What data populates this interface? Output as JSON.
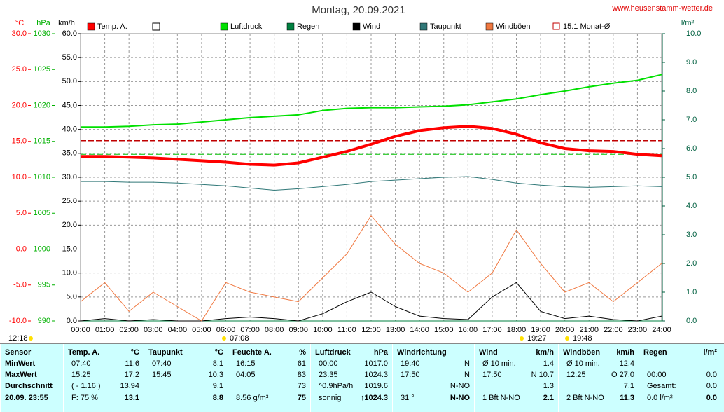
{
  "chart_data": {
    "type": "line",
    "title": "Montag, 20.09.2021",
    "site": "www.heusenstamm-wetter.de",
    "categories": [
      "00:00",
      "01:00",
      "02:00",
      "03:00",
      "04:00",
      "05:00",
      "06:00",
      "07:00",
      "08:00",
      "09:00",
      "10:00",
      "11:00",
      "12:00",
      "13:00",
      "14:00",
      "15:00",
      "16:00",
      "17:00",
      "18:00",
      "19:00",
      "20:00",
      "21:00",
      "22:00",
      "23:00",
      "24:00"
    ],
    "axes": [
      {
        "unit": "°C",
        "color": "#ff0000",
        "lim": [
          -10,
          30
        ],
        "ticks": [
          {
            "value": -10,
            "label": "-10.0"
          },
          {
            "value": -5,
            "label": "-5.0"
          },
          {
            "value": 0,
            "label": "0.0"
          },
          {
            "value": 5,
            "label": "5.0"
          },
          {
            "value": 10,
            "label": "10.0"
          },
          {
            "value": 15,
            "label": "15.0"
          },
          {
            "value": 20,
            "label": "20.0"
          },
          {
            "value": 25,
            "label": "25.0"
          },
          {
            "value": 30,
            "label": "30.0"
          }
        ]
      },
      {
        "unit": "hPa",
        "color": "#00b000",
        "lim": [
          990,
          1030
        ],
        "ticks": [
          990,
          995,
          1000,
          1005,
          1010,
          1015,
          1020,
          1025,
          1030
        ]
      },
      {
        "unit": "km/h",
        "color": "#000000",
        "lim": [
          0,
          60
        ],
        "grid": true,
        "ticks": [
          {
            "value": 0,
            "label": "0.0"
          },
          {
            "value": 5,
            "label": "5.0"
          },
          {
            "value": 10,
            "label": "10.0"
          },
          {
            "value": 15,
            "label": "15.0"
          },
          {
            "value": 20,
            "label": "20.0"
          },
          {
            "value": 25,
            "label": "25.0"
          },
          {
            "value": 30,
            "label": "30.0"
          },
          {
            "value": 35,
            "label": "35.0"
          },
          {
            "value": 40,
            "label": "40.0"
          },
          {
            "value": 45,
            "label": "45.0"
          },
          {
            "value": 50,
            "label": "50.0"
          },
          {
            "value": 55,
            "label": "55.0"
          },
          {
            "value": 60,
            "label": "60.0"
          }
        ]
      },
      {
        "unit": "l/m²",
        "color": "#006040",
        "lim": [
          0,
          10
        ],
        "ticks": [
          {
            "value": 0,
            "label": "0.0"
          },
          {
            "value": 1,
            "label": "1.0"
          },
          {
            "value": 2,
            "label": "2.0"
          },
          {
            "value": 3,
            "label": "3.0"
          },
          {
            "value": 4,
            "label": "4.0"
          },
          {
            "value": 5,
            "label": "5.0"
          },
          {
            "value": 6,
            "label": "6.0"
          },
          {
            "value": 7,
            "label": "7.0"
          },
          {
            "value": 8,
            "label": "8.0"
          },
          {
            "value": 9,
            "label": "9.0"
          },
          {
            "value": 10,
            "label": "10.0"
          }
        ]
      }
    ],
    "series": [
      {
        "name": "Temp. A.",
        "color": "#ff0000",
        "axis": 0,
        "width": 4,
        "values": [
          12.9,
          12.9,
          12.8,
          12.7,
          12.5,
          12.3,
          12.1,
          11.8,
          11.7,
          12.0,
          12.8,
          13.6,
          14.6,
          15.7,
          16.5,
          16.9,
          17.1,
          16.8,
          16.0,
          14.8,
          14.0,
          13.7,
          13.6,
          13.2,
          13.0
        ]
      },
      {
        "name": "Luftdruck",
        "color": "#00e000",
        "axis": 1,
        "width": 2,
        "values": [
          1017.0,
          1017.0,
          1017.1,
          1017.3,
          1017.4,
          1017.7,
          1018.0,
          1018.3,
          1018.5,
          1018.7,
          1019.3,
          1019.6,
          1019.7,
          1019.7,
          1019.8,
          1019.9,
          1020.1,
          1020.5,
          1020.9,
          1021.5,
          1022.0,
          1022.6,
          1023.1,
          1023.5,
          1024.3
        ]
      },
      {
        "name": "Regen",
        "color": "#008040",
        "axis": 3,
        "width": 1,
        "values": [
          0,
          0,
          0,
          0,
          0,
          0,
          0,
          0,
          0,
          0,
          0,
          0,
          0,
          0,
          0,
          0,
          0,
          0,
          0,
          0,
          0,
          0,
          0,
          0,
          0
        ]
      },
      {
        "name": "Wind",
        "color": "#000000",
        "axis": 2,
        "width": 1,
        "values": [
          0,
          0.5,
          0,
          0.3,
          0,
          0,
          0.5,
          0.8,
          0.5,
          0,
          1.5,
          4,
          6,
          3,
          1,
          0.5,
          0.3,
          5,
          8,
          2,
          0.5,
          1,
          0.3,
          0,
          1
        ]
      },
      {
        "name": "Taupunkt",
        "color": "#307878",
        "axis": 0,
        "width": 1,
        "values": [
          9.4,
          9.4,
          9.3,
          9.3,
          9.2,
          9.0,
          8.8,
          8.5,
          8.2,
          8.4,
          8.7,
          9.0,
          9.4,
          9.6,
          9.8,
          10.0,
          10.1,
          9.7,
          9.2,
          8.9,
          8.7,
          8.6,
          8.7,
          8.8,
          8.7
        ]
      },
      {
        "name": "Windböen",
        "color": "#f07840",
        "axis": 2,
        "width": 1,
        "values": [
          4,
          8,
          2,
          6,
          3,
          0,
          8,
          6,
          5,
          4,
          9,
          14,
          22,
          16,
          12,
          10,
          6,
          10,
          19,
          12,
          6,
          8,
          4,
          8,
          12
        ]
      }
    ],
    "monthly": {
      "name": "15.1 Monat-Ø",
      "value": 15.1,
      "axis": 0,
      "color": "#c00000"
    },
    "reference_lines": [
      {
        "axis": 1,
        "value": 1013.2,
        "color": "#00c000"
      }
    ],
    "sun_times": [
      "12:18",
      "07:08",
      "19:27",
      "19:48"
    ]
  },
  "table": {
    "columns": [
      {
        "head": {
          "l": "Sensor"
        },
        "rows": [
          {
            "l": "MinWert"
          },
          {
            "l": "MaxWert"
          },
          {
            "l": "Durchschnitt"
          },
          {
            "l": "20.09. 23:55"
          }
        ]
      },
      {
        "head": {
          "l": "Temp. A.",
          "r": "°C"
        },
        "rows": [
          {
            "l": "07:40",
            "r": "11.6"
          },
          {
            "l": "15:25",
            "r": "17.2"
          },
          {
            "l": "( - 1.16 )",
            "r": "13.94"
          },
          {
            "l": "F: 75 %",
            "r": "13.1"
          }
        ]
      },
      {
        "head": {
          "l": "Taupunkt",
          "r": "°C"
        },
        "rows": [
          {
            "l": "07:40",
            "r": "8.1"
          },
          {
            "l": "15:45",
            "r": "10.3"
          },
          {
            "r": "9.1"
          },
          {
            "r": "8.8"
          }
        ]
      },
      {
        "head": {
          "l": "Feuchte A.",
          "r": "%"
        },
        "rows": [
          {
            "l": "16:15",
            "r": "61"
          },
          {
            "l": "04:05",
            "r": "83"
          },
          {
            "r": "73"
          },
          {
            "l": "8.56 g/m³",
            "r": "75"
          }
        ]
      },
      {
        "head": {
          "l": "Luftdruck",
          "r": "hPa"
        },
        "rows": [
          {
            "l": "00:00",
            "r": "1017.0"
          },
          {
            "l": "23:35",
            "r": "1024.3"
          },
          {
            "l": "^0.9hPa/h",
            "r": "1019.6"
          },
          {
            "l": "sonnig",
            "r": "↑1024.3"
          }
        ]
      },
      {
        "head": {
          "l": "Windrichtung"
        },
        "rows": [
          {
            "l": "19:40",
            "r": "N"
          },
          {
            "l": "17:50",
            "r": "N"
          },
          {
            "r": "N-NO"
          },
          {
            "l": "31 °",
            "r": "N-NO"
          }
        ]
      },
      {
        "head": {
          "l": "Wind",
          "r": "km/h"
        },
        "rows": [
          {
            "l": "Ø 10 min.",
            "r": "1.4"
          },
          {
            "l": "17:50",
            "r": "N 10.7"
          },
          {
            "r": "1.3"
          },
          {
            "l": "1 Bft N-NO",
            "r": "2.1"
          }
        ]
      },
      {
        "head": {
          "l": "Windböen",
          "r": "km/h"
        },
        "rows": [
          {
            "l": "Ø 10 min.",
            "r": "12.4"
          },
          {
            "l": "12:25",
            "r": "O 27.0"
          },
          {
            "r": "7.1"
          },
          {
            "l": "2 Bft N-NO",
            "r": "11.3"
          }
        ]
      },
      {
        "head": {
          "l": "Regen",
          "r": "l/m²"
        },
        "rows": [
          {},
          {
            "l": "00:00",
            "r": "0.0"
          },
          {
            "l": "Gesamt:",
            "r": "0.0"
          },
          {
            "l": "0.0 l/m²",
            "r": "0.0"
          }
        ]
      }
    ]
  }
}
